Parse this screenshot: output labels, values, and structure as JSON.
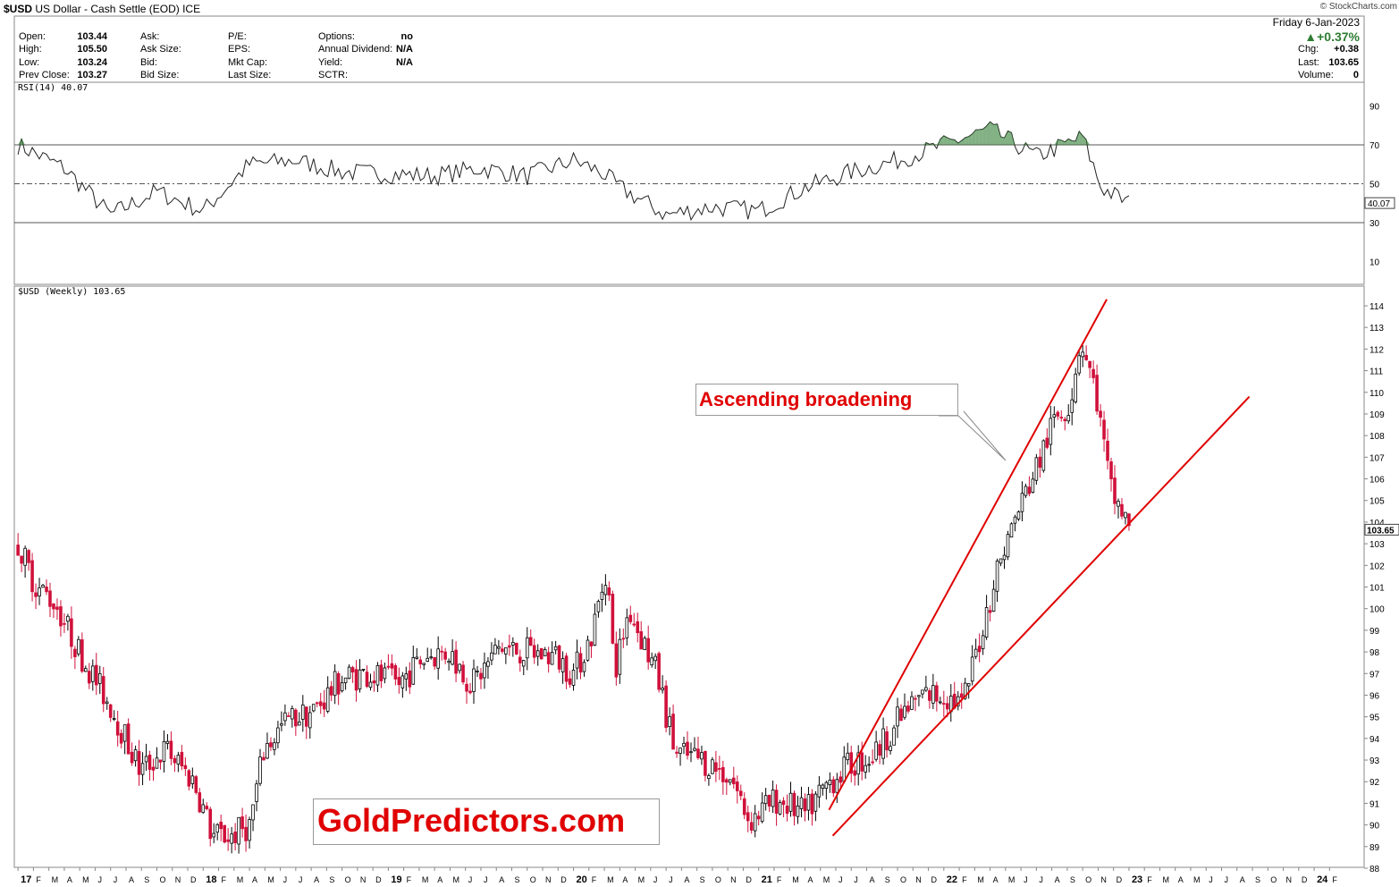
{
  "header": {
    "symbol": "$USD",
    "name": "US Dollar - Cash Settle (EOD)",
    "exchange": "ICE",
    "credit": "© StockCharts.com",
    "date": "Friday   6-Jan-2023",
    "change_pct": "▲+0.37%",
    "col1": [
      {
        "label": "Open:",
        "value": "103.44"
      },
      {
        "label": "High:",
        "value": "105.50"
      },
      {
        "label": "Low:",
        "value": "103.24"
      },
      {
        "label": "Prev Close:",
        "value": "103.27"
      }
    ],
    "col2": [
      "Ask:",
      "Ask Size:",
      "Bid:",
      "Bid Size:"
    ],
    "col3": [
      "P/E:",
      "EPS:",
      "Mkt Cap:",
      "Last Size:"
    ],
    "col4": [
      {
        "label": "Options:",
        "value": "no"
      },
      {
        "label": "Annual Dividend:",
        "value": "N/A"
      },
      {
        "label": "Yield:",
        "value": "N/A"
      },
      {
        "label": "SCTR:",
        "value": ""
      }
    ],
    "right": [
      {
        "label": "Chg:",
        "value": "+0.38"
      },
      {
        "label": "Last:",
        "value": "103.65"
      },
      {
        "label": "Volume:",
        "value": "0"
      }
    ]
  },
  "rsi_label": "RSI(14) 40.07",
  "price_label": "$USD (Weekly) 103.65",
  "annotation": "Ascending broadening",
  "brand": "GoldPredictors.com",
  "colors": {
    "up": "#000000",
    "down": "#d0103a",
    "trend": "#e00000",
    "overbought": "#2e7d32",
    "oversold": "#c62828"
  },
  "chart_data": [
    {
      "type": "line",
      "name": "RSI(14)",
      "ylim": [
        0,
        100
      ],
      "y_ticks": [
        10,
        30,
        50,
        70,
        90
      ],
      "reference_lines": [
        30,
        50,
        70
      ],
      "last_value": "40.07",
      "x": [
        2017.0,
        2017.25,
        2017.5,
        2017.75,
        2018.0,
        2018.25,
        2018.5,
        2018.75,
        2019.0,
        2019.25,
        2019.5,
        2019.75,
        2020.0,
        2020.15,
        2020.25,
        2020.5,
        2020.75,
        2021.0,
        2021.25,
        2021.5,
        2021.75,
        2022.0,
        2022.25,
        2022.5,
        2022.75,
        2022.85,
        2023.0
      ],
      "values": [
        70,
        58,
        34,
        46,
        36,
        60,
        62,
        56,
        55,
        54,
        58,
        54,
        62,
        56,
        48,
        34,
        38,
        36,
        48,
        56,
        62,
        70,
        78,
        64,
        74,
        48,
        40
      ]
    },
    {
      "type": "line",
      "name": "$USD (Weekly)",
      "subtype": "candlestick",
      "ylim": [
        88,
        115
      ],
      "y_ticks": [
        88,
        89,
        90,
        91,
        92,
        93,
        94,
        95,
        96,
        97,
        98,
        99,
        100,
        101,
        102,
        103,
        104,
        105,
        106,
        107,
        108,
        109,
        110,
        111,
        112,
        113,
        114
      ],
      "last_value": "103.65",
      "x_tick_labels": [
        "17",
        "F",
        "M",
        "A",
        "M",
        "J",
        "J",
        "A",
        "S",
        "O",
        "N",
        "D",
        "18",
        "F",
        "M",
        "A",
        "M",
        "J",
        "J",
        "A",
        "S",
        "O",
        "N",
        "D",
        "19",
        "F",
        "M",
        "A",
        "M",
        "J",
        "J",
        "A",
        "S",
        "O",
        "N",
        "D",
        "20",
        "F",
        "M",
        "A",
        "M",
        "J",
        "J",
        "A",
        "S",
        "O",
        "N",
        "D",
        "21",
        "F",
        "M",
        "A",
        "M",
        "J",
        "J",
        "A",
        "S",
        "O",
        "N",
        "D",
        "22",
        "F",
        "M",
        "A",
        "M",
        "J",
        "J",
        "A",
        "S",
        "O",
        "N",
        "D",
        "23",
        "F",
        "M",
        "A",
        "M",
        "J",
        "J",
        "A",
        "S",
        "O",
        "N",
        "D",
        "24",
        "F"
      ],
      "x": [
        2017.0,
        2017.1,
        2017.2,
        2017.33,
        2017.5,
        2017.66,
        2017.8,
        2017.95,
        2018.05,
        2018.15,
        2018.25,
        2018.33,
        2018.45,
        2018.6,
        2018.75,
        2018.9,
        2019.05,
        2019.2,
        2019.33,
        2019.45,
        2019.6,
        2019.75,
        2019.9,
        2020.0,
        2020.1,
        2020.18,
        2020.22,
        2020.3,
        2020.45,
        2020.55,
        2020.7,
        2020.85,
        2020.95,
        2021.1,
        2021.25,
        2021.38,
        2021.5,
        2021.62,
        2021.75,
        2021.88,
        2022.0,
        2022.1,
        2022.2,
        2022.3,
        2022.4,
        2022.5,
        2022.6,
        2022.68,
        2022.74,
        2022.82,
        2022.9,
        2023.01
      ],
      "values": [
        103.0,
        101.0,
        100.3,
        98.0,
        95.5,
        92.5,
        93.5,
        92.0,
        89.5,
        89.5,
        90.0,
        93.5,
        94.8,
        95.3,
        96.8,
        97.0,
        96.5,
        97.8,
        98.0,
        96.5,
        98.2,
        98.0,
        97.8,
        97.0,
        98.8,
        102.0,
        97.0,
        100.0,
        97.0,
        93.3,
        93.0,
        92.2,
        90.2,
        91.2,
        90.5,
        92.0,
        92.8,
        93.2,
        94.8,
        96.0,
        96.0,
        95.5,
        98.8,
        102.2,
        104.5,
        106.5,
        108.8,
        109.5,
        112.5,
        110.0,
        105.5,
        103.65
      ],
      "lines": [
        {
          "name": "upper-trendline",
          "from": [
            2021.38,
            90.7
          ],
          "to": [
            2022.88,
            114.3
          ]
        },
        {
          "name": "lower-trendline",
          "from": [
            2021.4,
            89.5
          ],
          "to": [
            2023.65,
            109.8
          ]
        }
      ]
    }
  ]
}
